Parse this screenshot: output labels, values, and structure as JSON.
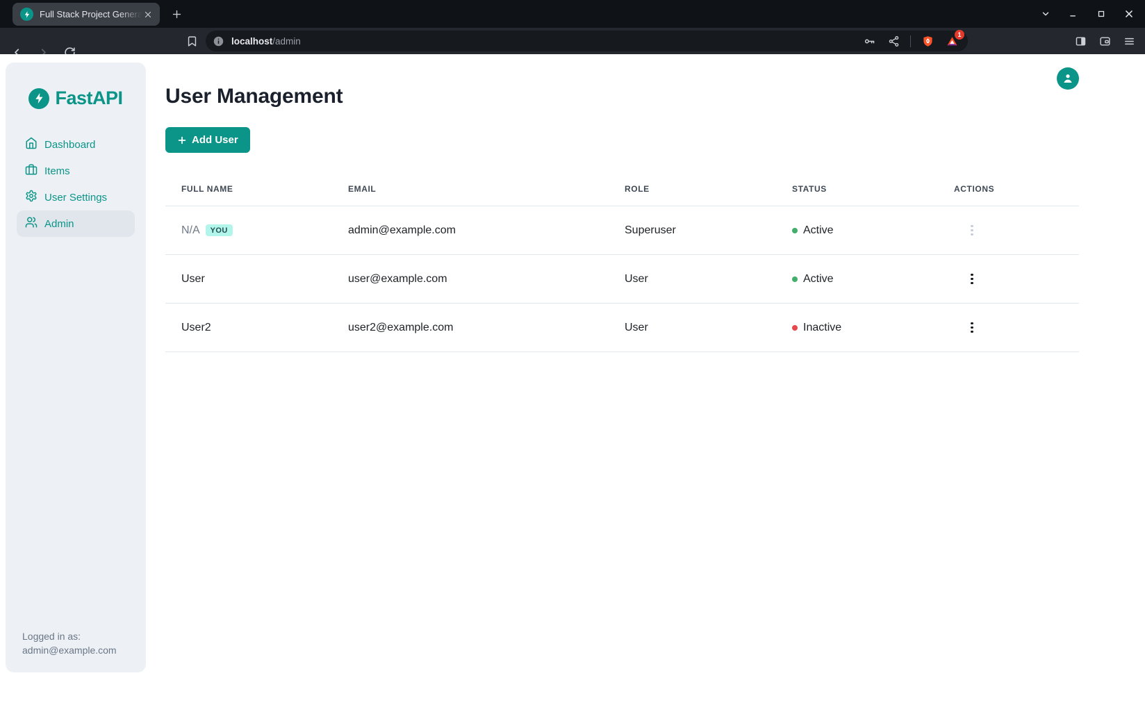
{
  "colors": {
    "accent": "#0b9488",
    "badge_bg": "#b2f5ea",
    "badge_fg": "#234e52",
    "green": "#43ad6b",
    "red": "#e5484d",
    "chrome_dark": "#0f1216",
    "toolbar": "#24282e",
    "sidebar_bg": "#edf1f5"
  },
  "browser": {
    "tab_title": "Full Stack Project Genera",
    "url_host": "localhost",
    "url_path": "/admin",
    "rewards_badge": "1",
    "icons": [
      "zap-favicon",
      "close-icon",
      "plus-icon",
      "chevron-down-icon",
      "minimize-icon",
      "maximize-icon",
      "close-icon",
      "back-icon",
      "forward-icon",
      "reload-icon",
      "bookmark-icon",
      "info-icon",
      "key-icon",
      "share-icon",
      "brave-shield-icon",
      "brave-rewards-icon",
      "side-panel-icon",
      "wallet-icon",
      "menu-icon"
    ]
  },
  "sidebar": {
    "logo_text": "FastAPI",
    "items": [
      {
        "label": "Dashboard",
        "icon": "home",
        "active": false
      },
      {
        "label": "Items",
        "icon": "briefcase",
        "active": false
      },
      {
        "label": "User Settings",
        "icon": "gear",
        "active": false
      },
      {
        "label": "Admin",
        "icon": "users",
        "active": true
      }
    ],
    "logged_in_label": "Logged in as:",
    "logged_in_email": "admin@example.com"
  },
  "main": {
    "title": "User Management",
    "add_user_label": "Add User",
    "table": {
      "headers": [
        "Full Name",
        "Email",
        "Role",
        "Status",
        "Actions"
      ],
      "rows": [
        {
          "full_name": "N/A",
          "name_muted": true,
          "you_badge": "YOU",
          "email": "admin@example.com",
          "role": "Superuser",
          "status": "Active",
          "status_variant": "success",
          "actions_disabled": true
        },
        {
          "full_name": "User",
          "name_muted": false,
          "you_badge": "",
          "email": "user@example.com",
          "role": "User",
          "status": "Active",
          "status_variant": "success",
          "actions_disabled": false
        },
        {
          "full_name": "User2",
          "name_muted": false,
          "you_badge": "",
          "email": "user2@example.com",
          "role": "User",
          "status": "Inactive",
          "status_variant": "danger",
          "actions_disabled": false
        }
      ]
    }
  }
}
